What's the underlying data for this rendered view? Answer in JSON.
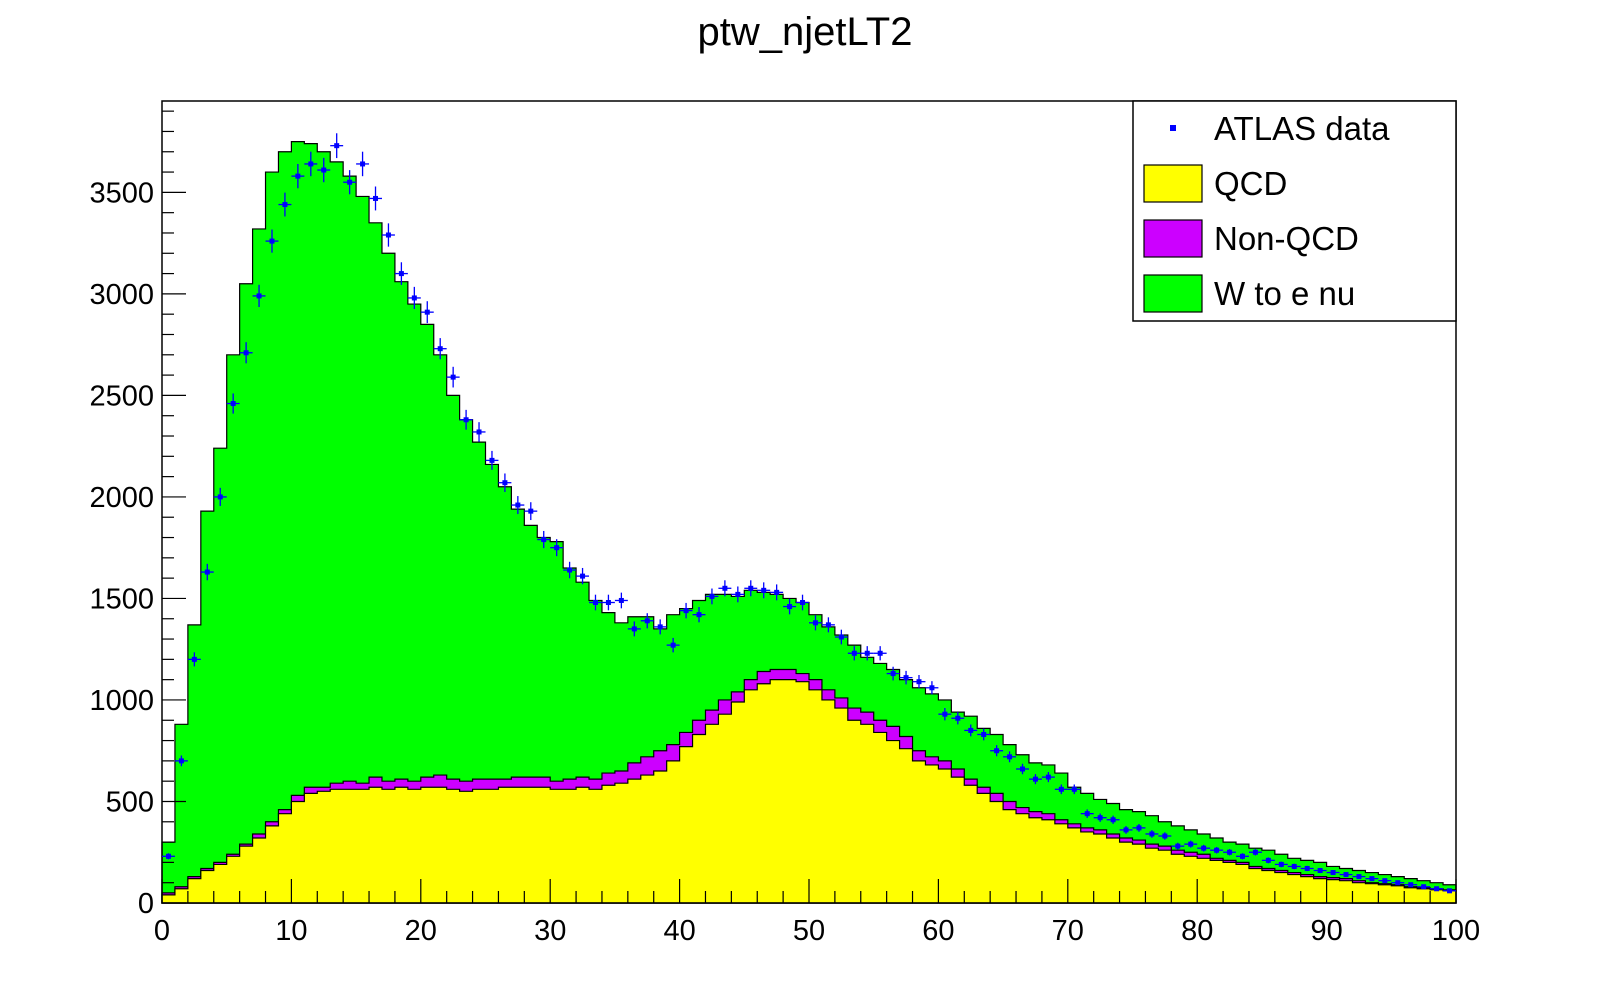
{
  "chart_data": {
    "type": "histogram",
    "title": "ptw_njetLT2",
    "xlabel": "",
    "ylabel": "",
    "xlim": [
      0,
      100
    ],
    "ylim": [
      0,
      3950
    ],
    "bin_width": 1,
    "x_ticks": [
      0,
      10,
      20,
      30,
      40,
      50,
      60,
      70,
      80,
      90,
      100
    ],
    "y_ticks": [
      0,
      500,
      1000,
      1500,
      2000,
      2500,
      3000,
      3500
    ],
    "stack_order": [
      "QCD",
      "Non-QCD",
      "W to e nu"
    ],
    "colors": {
      "QCD": "#ffff00",
      "Non-QCD": "#cc00ff",
      "W to e nu": "#00ff00",
      "data": "#0000ff",
      "outline": "#000000"
    },
    "legend_position": "top-right",
    "legend": [
      {
        "label": "ATLAS data",
        "style": "marker"
      },
      {
        "label": "QCD",
        "style": "fill"
      },
      {
        "label": "Non-QCD",
        "style": "fill"
      },
      {
        "label": "W to e nu",
        "style": "fill"
      }
    ],
    "stack_totals": [
      300,
      880,
      1370,
      1930,
      2240,
      2700,
      3050,
      3320,
      3600,
      3700,
      3750,
      3740,
      3700,
      3650,
      3580,
      3480,
      3350,
      3200,
      3060,
      2950,
      2850,
      2700,
      2500,
      2380,
      2270,
      2160,
      2050,
      1940,
      1860,
      1800,
      1780,
      1650,
      1580,
      1490,
      1430,
      1380,
      1410,
      1410,
      1350,
      1420,
      1450,
      1490,
      1520,
      1520,
      1510,
      1540,
      1530,
      1520,
      1500,
      1480,
      1420,
      1360,
      1320,
      1270,
      1210,
      1180,
      1150,
      1100,
      1060,
      1030,
      1000,
      940,
      920,
      860,
      830,
      780,
      730,
      690,
      680,
      640,
      570,
      540,
      510,
      490,
      460,
      450,
      430,
      400,
      380,
      360,
      340,
      320,
      300,
      290,
      270,
      260,
      240,
      220,
      210,
      200,
      180,
      170,
      160,
      150,
      140,
      130,
      120,
      110,
      100,
      90
    ],
    "nonqcd_tops": [
      50,
      80,
      130,
      170,
      200,
      240,
      290,
      340,
      400,
      460,
      530,
      570,
      570,
      590,
      600,
      590,
      620,
      600,
      610,
      600,
      620,
      630,
      610,
      600,
      610,
      610,
      610,
      620,
      620,
      620,
      600,
      610,
      620,
      610,
      640,
      650,
      690,
      720,
      750,
      780,
      840,
      900,
      950,
      1000,
      1040,
      1100,
      1140,
      1150,
      1150,
      1130,
      1100,
      1050,
      1010,
      960,
      940,
      900,
      870,
      820,
      750,
      720,
      700,
      660,
      610,
      570,
      540,
      500,
      470,
      450,
      440,
      410,
      390,
      370,
      360,
      340,
      320,
      310,
      290,
      280,
      260,
      250,
      240,
      220,
      210,
      200,
      180,
      170,
      160,
      150,
      140,
      130,
      125,
      120,
      110,
      100,
      95,
      90,
      80,
      75,
      70,
      65
    ],
    "qcd_tops": [
      40,
      70,
      120,
      160,
      190,
      230,
      280,
      320,
      380,
      440,
      500,
      540,
      550,
      560,
      560,
      560,
      570,
      560,
      570,
      560,
      570,
      570,
      560,
      550,
      560,
      560,
      570,
      570,
      570,
      570,
      560,
      560,
      570,
      560,
      580,
      590,
      610,
      630,
      650,
      700,
      770,
      830,
      880,
      930,
      990,
      1050,
      1080,
      1100,
      1100,
      1090,
      1050,
      1000,
      960,
      900,
      880,
      840,
      800,
      760,
      700,
      680,
      660,
      620,
      580,
      540,
      500,
      460,
      440,
      420,
      410,
      390,
      370,
      350,
      340,
      320,
      300,
      290,
      270,
      260,
      240,
      230,
      220,
      210,
      200,
      190,
      170,
      160,
      150,
      140,
      130,
      120,
      115,
      110,
      100,
      95,
      90,
      85,
      75,
      70,
      65,
      60
    ],
    "data_points": [
      230,
      700,
      1200,
      1630,
      2000,
      2460,
      2710,
      2990,
      3260,
      3440,
      3580,
      3640,
      3610,
      3730,
      3550,
      3640,
      3470,
      3290,
      3100,
      2980,
      2910,
      2730,
      2590,
      2380,
      2320,
      2180,
      2070,
      1960,
      1930,
      1790,
      1750,
      1640,
      1610,
      1480,
      1480,
      1490,
      1350,
      1390,
      1360,
      1270,
      1440,
      1420,
      1510,
      1550,
      1520,
      1550,
      1540,
      1530,
      1460,
      1480,
      1380,
      1370,
      1310,
      1230,
      1230,
      1230,
      1130,
      1110,
      1090,
      1060,
      930,
      910,
      850,
      830,
      750,
      720,
      660,
      610,
      620,
      560,
      560,
      440,
      420,
      410,
      360,
      370,
      340,
      330,
      280,
      290,
      270,
      260,
      250,
      230,
      250,
      210,
      190,
      180,
      170,
      160,
      150,
      140,
      130,
      120,
      110,
      100,
      90,
      80,
      70,
      60
    ]
  }
}
